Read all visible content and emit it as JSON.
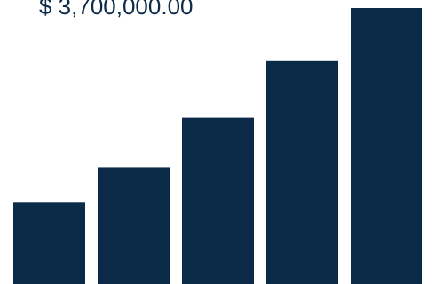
{
  "chart_data": {
    "type": "bar",
    "title": "",
    "xlabel": "",
    "ylabel": "",
    "categories": [
      "",
      "",
      "",
      "",
      ""
    ],
    "values": [
      1150000,
      1650000,
      2350000,
      3150000,
      3900000
    ],
    "ylim": [
      0,
      3900000
    ],
    "annotations": [
      {
        "text": "$ 3,700,000.00"
      }
    ],
    "grid": false,
    "legend": "none"
  },
  "colors": {
    "bar": "#0b2a47",
    "background": "#ffffff",
    "label": "#0b2a47"
  }
}
